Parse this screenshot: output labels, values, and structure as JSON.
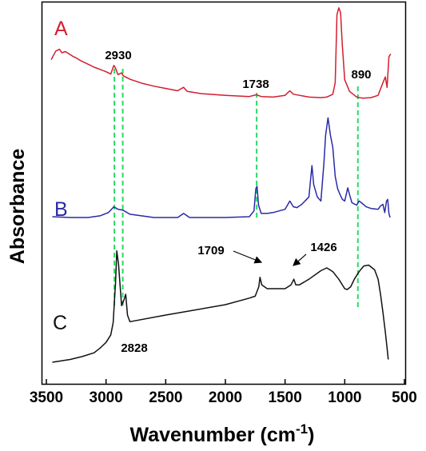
{
  "chart_data": {
    "type": "line",
    "xlabel": "Wavenumber (cm",
    "xlabel_sup": "-1",
    "xlabel_close": ")",
    "ylabel": "Absorbance",
    "xlim": [
      3500,
      500
    ],
    "x_reversed": true,
    "x_ticks": [
      3500,
      3000,
      2500,
      2000,
      1500,
      1000,
      500
    ],
    "y_ticks_shown": false,
    "series": [
      {
        "name": "A",
        "color": "#d21e2f",
        "points": [
          [
            3460,
            0.7
          ],
          [
            3420,
            0.85
          ],
          [
            3390,
            0.88
          ],
          [
            3370,
            0.82
          ],
          [
            3340,
            0.84
          ],
          [
            3310,
            0.8
          ],
          [
            3280,
            0.76
          ],
          [
            3250,
            0.73
          ],
          [
            3220,
            0.69
          ],
          [
            3180,
            0.65
          ],
          [
            3140,
            0.61
          ],
          [
            3100,
            0.57
          ],
          [
            3050,
            0.53
          ],
          [
            3000,
            0.49
          ],
          [
            2960,
            0.45
          ],
          [
            2935,
            0.6
          ],
          [
            2920,
            0.55
          ],
          [
            2900,
            0.44
          ],
          [
            2870,
            0.47
          ],
          [
            2855,
            0.42
          ],
          [
            2800,
            0.36
          ],
          [
            2700,
            0.29
          ],
          [
            2600,
            0.24
          ],
          [
            2500,
            0.2
          ],
          [
            2400,
            0.16
          ],
          [
            2350,
            0.22
          ],
          [
            2320,
            0.15
          ],
          [
            2200,
            0.11
          ],
          [
            2000,
            0.08
          ],
          [
            1800,
            0.06
          ],
          [
            1740,
            0.09
          ],
          [
            1700,
            0.06
          ],
          [
            1600,
            0.05
          ],
          [
            1500,
            0.08
          ],
          [
            1460,
            0.16
          ],
          [
            1430,
            0.1
          ],
          [
            1380,
            0.08
          ],
          [
            1300,
            0.05
          ],
          [
            1200,
            0.04
          ],
          [
            1150,
            0.05
          ],
          [
            1100,
            0.1
          ],
          [
            1080,
            0.3
          ],
          [
            1065,
            1.48
          ],
          [
            1050,
            1.6
          ],
          [
            1035,
            1.52
          ],
          [
            1020,
            0.95
          ],
          [
            1000,
            0.35
          ],
          [
            960,
            0.15
          ],
          [
            900,
            0.05
          ],
          [
            850,
            0.03
          ],
          [
            780,
            0.04
          ],
          [
            720,
            0.08
          ],
          [
            680,
            0.3
          ],
          [
            660,
            0.4
          ],
          [
            645,
            0.22
          ],
          [
            630,
            0.75
          ],
          [
            615,
            0.8
          ]
        ]
      },
      {
        "name": "B",
        "color": "#2a2aa8",
        "points": [
          [
            3450,
            0.01
          ],
          [
            3300,
            0.0
          ],
          [
            3150,
            0.0
          ],
          [
            3050,
            0.02
          ],
          [
            2980,
            0.06
          ],
          [
            2935,
            0.13
          ],
          [
            2900,
            0.1
          ],
          [
            2860,
            0.09
          ],
          [
            2800,
            0.04
          ],
          [
            2600,
            0.0
          ],
          [
            2400,
            0.0
          ],
          [
            2350,
            0.05
          ],
          [
            2300,
            0.0
          ],
          [
            2000,
            0.0
          ],
          [
            1800,
            0.01
          ],
          [
            1760,
            0.08
          ],
          [
            1745,
            0.35
          ],
          [
            1735,
            0.38
          ],
          [
            1722,
            0.15
          ],
          [
            1700,
            0.05
          ],
          [
            1650,
            0.05
          ],
          [
            1600,
            0.06
          ],
          [
            1500,
            0.1
          ],
          [
            1460,
            0.2
          ],
          [
            1430,
            0.13
          ],
          [
            1400,
            0.12
          ],
          [
            1360,
            0.16
          ],
          [
            1300,
            0.25
          ],
          [
            1275,
            0.63
          ],
          [
            1260,
            0.4
          ],
          [
            1230,
            0.25
          ],
          [
            1200,
            0.2
          ],
          [
            1175,
            0.65
          ],
          [
            1160,
            1.0
          ],
          [
            1140,
            1.21
          ],
          [
            1120,
            1.0
          ],
          [
            1100,
            0.85
          ],
          [
            1080,
            0.5
          ],
          [
            1060,
            0.35
          ],
          [
            1040,
            0.28
          ],
          [
            1020,
            0.22
          ],
          [
            1000,
            0.2
          ],
          [
            975,
            0.36
          ],
          [
            960,
            0.28
          ],
          [
            940,
            0.18
          ],
          [
            900,
            0.15
          ],
          [
            880,
            0.2
          ],
          [
            860,
            0.18
          ],
          [
            820,
            0.13
          ],
          [
            780,
            0.11
          ],
          [
            720,
            0.1
          ],
          [
            700,
            0.14
          ],
          [
            680,
            0.16
          ],
          [
            665,
            0.06
          ],
          [
            650,
            0.2
          ],
          [
            640,
            0.22
          ],
          [
            630,
            0.05
          ],
          [
            620,
            0.0
          ]
        ]
      },
      {
        "name": "C",
        "color": "#111111",
        "points": [
          [
            3450,
            0.0
          ],
          [
            3300,
            0.03
          ],
          [
            3200,
            0.06
          ],
          [
            3100,
            0.1
          ],
          [
            3050,
            0.15
          ],
          [
            3000,
            0.21
          ],
          [
            2960,
            0.29
          ],
          [
            2940,
            0.42
          ],
          [
            2920,
            0.85
          ],
          [
            2910,
            1.18
          ],
          [
            2895,
            1.04
          ],
          [
            2870,
            0.6
          ],
          [
            2850,
            0.66
          ],
          [
            2835,
            0.72
          ],
          [
            2820,
            0.5
          ],
          [
            2800,
            0.43
          ],
          [
            2500,
            0.5
          ],
          [
            2000,
            0.61
          ],
          [
            1800,
            0.68
          ],
          [
            1750,
            0.7
          ],
          [
            1720,
            0.8
          ],
          [
            1710,
            0.9
          ],
          [
            1695,
            0.82
          ],
          [
            1650,
            0.78
          ],
          [
            1600,
            0.78
          ],
          [
            1500,
            0.78
          ],
          [
            1450,
            0.82
          ],
          [
            1426,
            0.88
          ],
          [
            1410,
            0.82
          ],
          [
            1380,
            0.82
          ],
          [
            1300,
            0.88
          ],
          [
            1200,
            0.97
          ],
          [
            1150,
            1.0
          ],
          [
            1100,
            0.96
          ],
          [
            1050,
            0.88
          ],
          [
            1000,
            0.78
          ],
          [
            980,
            0.77
          ],
          [
            950,
            0.8
          ],
          [
            920,
            0.88
          ],
          [
            880,
            0.96
          ],
          [
            840,
            1.02
          ],
          [
            800,
            1.03
          ],
          [
            750,
            0.98
          ],
          [
            720,
            0.88
          ],
          [
            700,
            0.72
          ],
          [
            680,
            0.53
          ],
          [
            660,
            0.32
          ],
          [
            645,
            0.15
          ],
          [
            635,
            0.03
          ]
        ]
      }
    ],
    "annotations": [
      {
        "text": "2930",
        "x": 2930
      },
      {
        "text": "1738",
        "x": 1738
      },
      {
        "text": "890",
        "x": 890
      },
      {
        "text": "1709",
        "x": 1709
      },
      {
        "text": "1426",
        "x": 1426
      },
      {
        "text": "2828",
        "x": 2828
      }
    ],
    "reference_lines": [
      {
        "x": 2930,
        "color": "#22dd66",
        "style": "dashed"
      },
      {
        "x": 2860,
        "color": "#22dd66",
        "style": "dashed"
      },
      {
        "x": 1738,
        "color": "#22dd66",
        "style": "dashed"
      },
      {
        "x": 890,
        "color": "#22dd66",
        "style": "dashed"
      }
    ],
    "grid": false,
    "legend": "inline labels at left"
  }
}
